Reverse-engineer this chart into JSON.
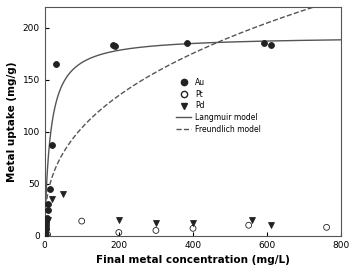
{
  "title": "",
  "xlabel": "Final metal concentration (mg/L)",
  "ylabel": "Metal uptake (mg/g)",
  "xlim": [
    0,
    800
  ],
  "ylim": [
    0,
    220
  ],
  "xticks": [
    0,
    200,
    400,
    600,
    800
  ],
  "yticks": [
    0,
    50,
    100,
    150,
    200
  ],
  "Au_x": [
    1,
    2,
    3,
    4,
    5,
    6,
    8,
    10,
    15,
    20,
    30,
    185,
    190,
    385,
    590,
    610
  ],
  "Au_y": [
    1,
    3,
    6,
    10,
    13,
    17,
    25,
    30,
    45,
    87,
    165,
    183,
    182,
    185,
    185,
    183
  ],
  "Pt_x": [
    2,
    5,
    8,
    100,
    200,
    300,
    400,
    550,
    760
  ],
  "Pt_y": [
    0,
    0,
    1,
    14,
    3,
    5,
    7,
    10,
    8
  ],
  "Pd_x": [
    2,
    5,
    10,
    20,
    50,
    200,
    300,
    400,
    560,
    610
  ],
  "Pd_y": [
    1,
    5,
    15,
    35,
    40,
    15,
    12,
    12,
    15,
    10
  ],
  "langmuir_qmax": 192,
  "langmuir_b": 0.065,
  "freundlich_K": 18,
  "freundlich_n": 0.38,
  "line_color": "#555555",
  "marker_color": "#222222",
  "bg_color": "#ffffff"
}
